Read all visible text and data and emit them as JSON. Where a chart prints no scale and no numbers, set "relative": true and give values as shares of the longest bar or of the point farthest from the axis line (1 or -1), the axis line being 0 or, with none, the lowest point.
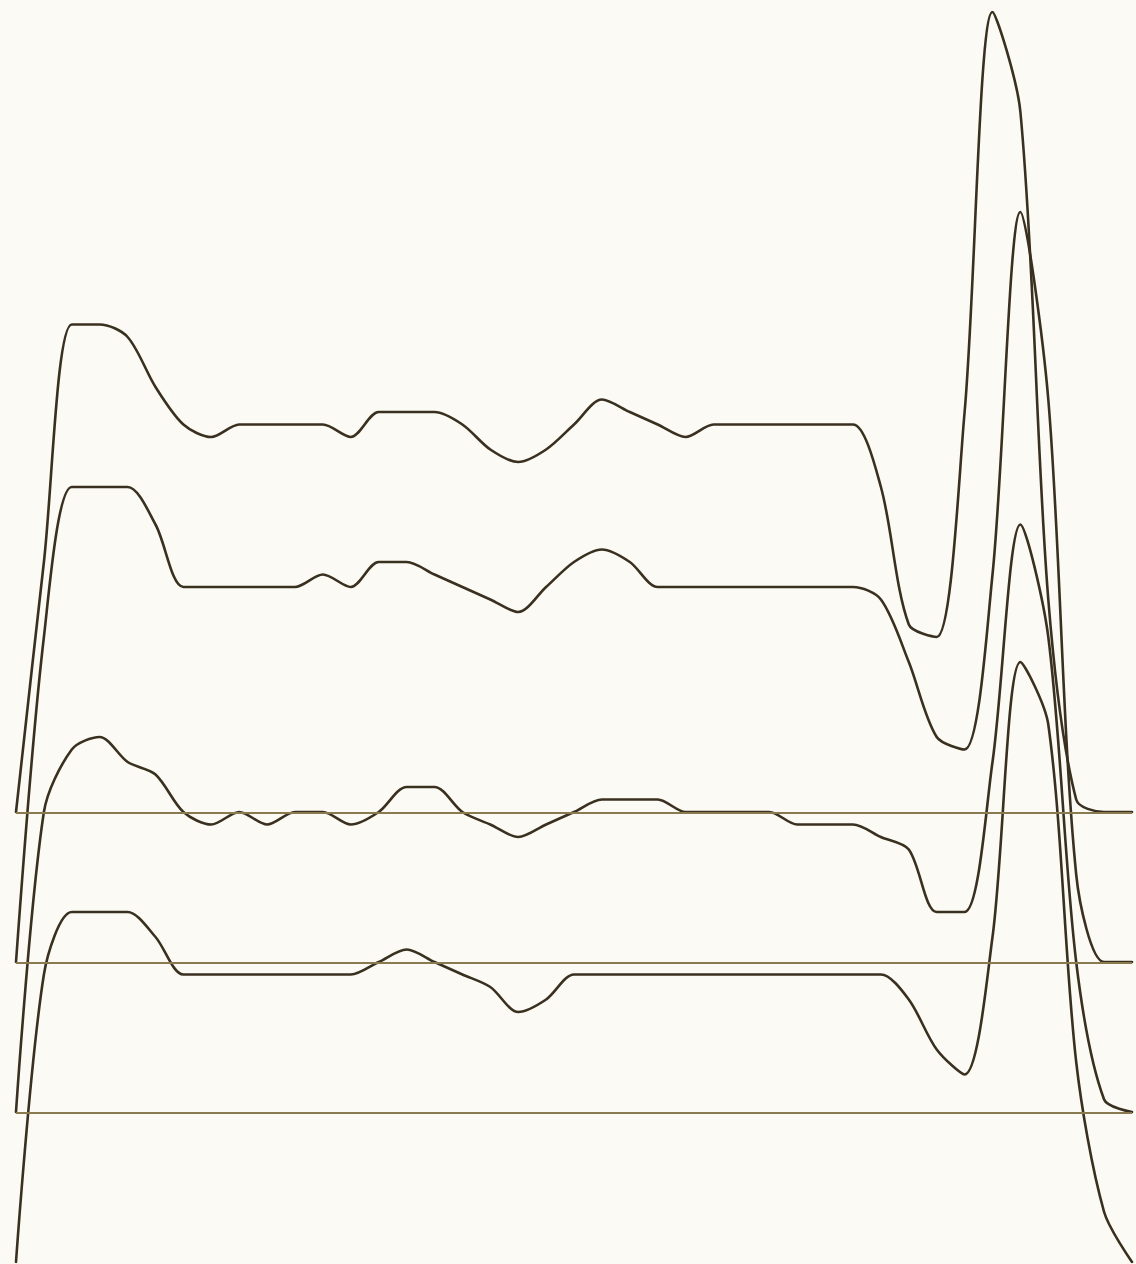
{
  "chart_data": {
    "type": "line",
    "relative": true,
    "marker": "none",
    "line_style": "solid",
    "categories": [
      null,
      null,
      null,
      null,
      null,
      null,
      null,
      null,
      null,
      null,
      null,
      null,
      null,
      null,
      null,
      null,
      null,
      null,
      null,
      null,
      null,
      null,
      null,
      null,
      null,
      null,
      null,
      null,
      null,
      null,
      null,
      null,
      null,
      null,
      null,
      null,
      null,
      null,
      null,
      null,
      null
    ],
    "series": [
      {
        "color": "#3a3020",
        "values": [
          0.36,
          0.56,
          0.75,
          0.75,
          0.74,
          0.7,
          0.67,
          0.66,
          0.67,
          0.67,
          0.67,
          0.67,
          0.66,
          0.68,
          0.68,
          0.68,
          0.67,
          0.65,
          0.64,
          0.65,
          0.67,
          0.69,
          0.68,
          0.67,
          0.66,
          0.67,
          0.67,
          0.67,
          0.67,
          0.67,
          0.67,
          0.62,
          0.51,
          0.5,
          0.68,
          1,
          0.92,
          0.53,
          0.37,
          0.36,
          0.36
        ]
      },
      {
        "color": "#3a3020",
        "values": [
          0.24,
          0.5,
          0.62,
          0.62,
          0.62,
          0.59,
          0.54,
          0.54,
          0.54,
          0.54,
          0.54,
          0.55,
          0.54,
          0.56,
          0.56,
          0.55,
          0.54,
          0.53,
          0.52,
          0.54,
          0.56,
          0.57,
          0.56,
          0.54,
          0.54,
          0.54,
          0.54,
          0.54,
          0.54,
          0.54,
          0.54,
          0.53,
          0.48,
          0.42,
          0.41,
          0.55,
          0.84,
          0.69,
          0.31,
          0.24,
          0.24
        ]
      },
      {
        "color": "#3a3020",
        "values": [
          0.12,
          0.36,
          0.41,
          0.42,
          0.4,
          0.39,
          0.36,
          0.35,
          0.36,
          0.35,
          0.36,
          0.36,
          0.35,
          0.36,
          0.38,
          0.38,
          0.36,
          0.35,
          0.34,
          0.35,
          0.36,
          0.37,
          0.37,
          0.37,
          0.36,
          0.36,
          0.36,
          0.36,
          0.35,
          0.35,
          0.35,
          0.34,
          0.33,
          0.28,
          0.28,
          0.4,
          0.59,
          0.5,
          0.24,
          0.13,
          0.12
        ]
      },
      {
        "color": "#3a3020",
        "values": [
          0,
          0.23,
          0.28,
          0.28,
          0.28,
          0.26,
          0.23,
          0.23,
          0.23,
          0.23,
          0.23,
          0.23,
          0.23,
          0.24,
          0.25,
          0.24,
          0.23,
          0.22,
          0.2,
          0.21,
          0.23,
          0.23,
          0.23,
          0.23,
          0.23,
          0.23,
          0.23,
          0.23,
          0.23,
          0.23,
          0.23,
          0.23,
          0.21,
          0.17,
          0.15,
          0.26,
          0.48,
          0.43,
          0.16,
          0.04,
          0
        ]
      }
    ],
    "ref_lines": [
      {
        "axis": "y",
        "value": 0.36,
        "color": "#8a7a50"
      },
      {
        "axis": "y",
        "value": 0.24,
        "color": "#8a7a50"
      },
      {
        "axis": "y",
        "value": 0.12,
        "color": "#8a7a50"
      }
    ]
  }
}
